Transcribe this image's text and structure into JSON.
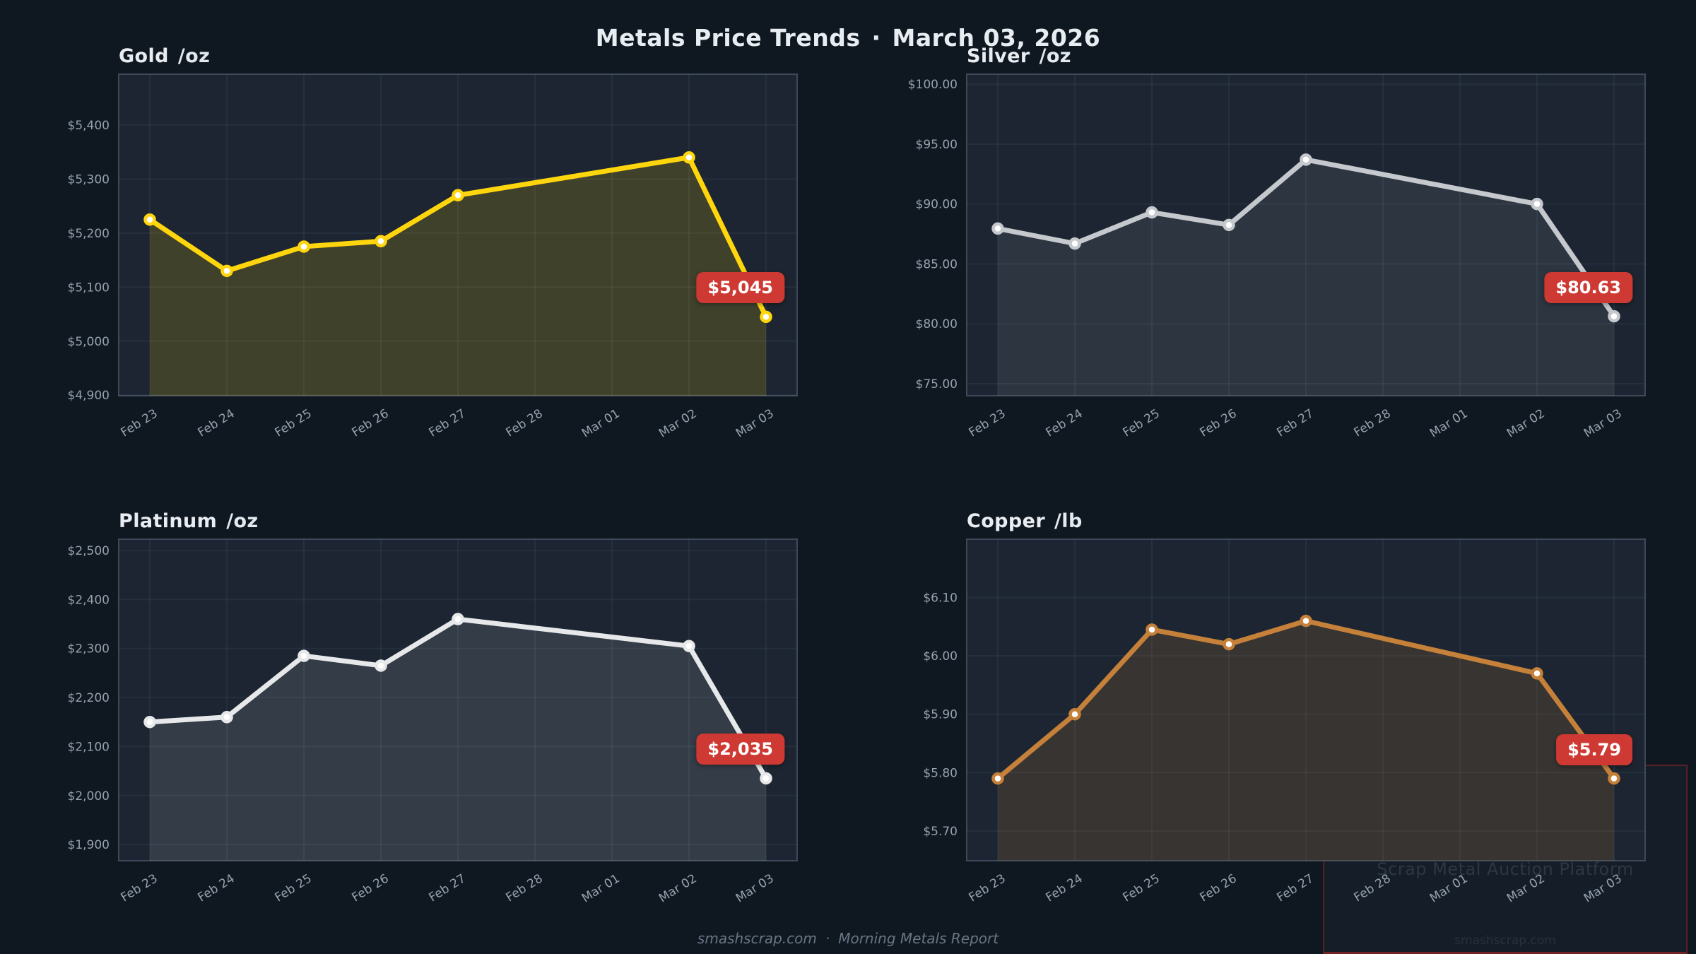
{
  "header": {
    "title": "Metals Price Trends",
    "separator": "·",
    "date": "March 03, 2026"
  },
  "footer": {
    "site": "smashscrap.com",
    "separator": "·",
    "report": "Morning Metals Report"
  },
  "watermark": {
    "line1": "Scrap Metal Auction Platform",
    "line2": "smashscrap.com"
  },
  "colors": {
    "page_bg": "#0f1821",
    "plot_bg": "#1c2531",
    "plot_border": "#3d4958",
    "grid": "rgba(157,180,205,0.08)",
    "tick_text": "#95a1af",
    "badge_bg": "#ce3a33",
    "badge_text": "#ffffff"
  },
  "chart_data": [
    {
      "type": "area",
      "title": "Gold",
      "unit": "/oz",
      "categories": [
        "Feb 23",
        "Feb 24",
        "Feb 25",
        "Feb 26",
        "Feb 27",
        "Feb 28",
        "Mar 01",
        "Mar 02",
        "Mar 03"
      ],
      "values": [
        5225,
        5130,
        5175,
        5185,
        5270,
        null,
        null,
        5340,
        5045
      ],
      "badge": "$5,045",
      "line_color": "#ffd60d",
      "fill_color": "rgba(255,214,13,0.16)",
      "ylim": [
        4899,
        5494
      ],
      "yticks": [
        {
          "v": 5400,
          "label": "$5,400"
        },
        {
          "v": 5300,
          "label": "$5,300"
        },
        {
          "v": 5200,
          "label": "$5,200"
        },
        {
          "v": 5100,
          "label": "$5,100"
        },
        {
          "v": 5000,
          "label": "$5,000"
        },
        {
          "v": 4900,
          "label": "$4,900"
        }
      ]
    },
    {
      "type": "area",
      "title": "Silver",
      "unit": "/oz",
      "categories": [
        "Feb 23",
        "Feb 24",
        "Feb 25",
        "Feb 26",
        "Feb 27",
        "Feb 28",
        "Mar 01",
        "Mar 02",
        "Mar 03"
      ],
      "values": [
        87.95,
        86.7,
        89.3,
        88.25,
        93.7,
        null,
        null,
        90.0,
        80.63
      ],
      "badge": "$80.63",
      "line_color": "#c5c9cd",
      "fill_color": "rgba(197,201,205,0.10)",
      "ylim": [
        74.0,
        100.83
      ],
      "yticks": [
        {
          "v": 100,
          "label": "$100.00"
        },
        {
          "v": 95,
          "label": "$95.00"
        },
        {
          "v": 90,
          "label": "$90.00"
        },
        {
          "v": 85,
          "label": "$85.00"
        },
        {
          "v": 80,
          "label": "$80.00"
        },
        {
          "v": 75,
          "label": "$75.00"
        }
      ]
    },
    {
      "type": "area",
      "title": "Platinum",
      "unit": "/oz",
      "categories": [
        "Feb 23",
        "Feb 24",
        "Feb 25",
        "Feb 26",
        "Feb 27",
        "Feb 28",
        "Mar 01",
        "Mar 02",
        "Mar 03"
      ],
      "values": [
        2150,
        2160,
        2285,
        2265,
        2360,
        null,
        null,
        2305,
        2035
      ],
      "badge": "$2,035",
      "line_color": "#e6e8ea",
      "fill_color": "rgba(230,232,234,0.12)",
      "ylim": [
        1867,
        2523
      ],
      "yticks": [
        {
          "v": 2500,
          "label": "$2,500"
        },
        {
          "v": 2400,
          "label": "$2,400"
        },
        {
          "v": 2300,
          "label": "$2,300"
        },
        {
          "v": 2200,
          "label": "$2,200"
        },
        {
          "v": 2100,
          "label": "$2,100"
        },
        {
          "v": 2000,
          "label": "$2,000"
        },
        {
          "v": 1900,
          "label": "$1,900"
        }
      ]
    },
    {
      "type": "area",
      "title": "Copper",
      "unit": "/lb",
      "categories": [
        "Feb 23",
        "Feb 24",
        "Feb 25",
        "Feb 26",
        "Feb 27",
        "Feb 28",
        "Mar 01",
        "Mar 02",
        "Mar 03"
      ],
      "values": [
        5.79,
        5.9,
        6.045,
        6.02,
        6.06,
        null,
        null,
        5.97,
        5.79
      ],
      "badge": "$5.79",
      "line_color": "#c5803a",
      "fill_color": "rgba(200,130,50,0.16)",
      "ylim": [
        5.649,
        6.2
      ],
      "yticks": [
        {
          "v": 6.1,
          "label": "$6.10"
        },
        {
          "v": 6.0,
          "label": "$6.00"
        },
        {
          "v": 5.9,
          "label": "$5.90"
        },
        {
          "v": 5.8,
          "label": "$5.80"
        },
        {
          "v": 5.7,
          "label": "$5.70"
        }
      ]
    }
  ]
}
